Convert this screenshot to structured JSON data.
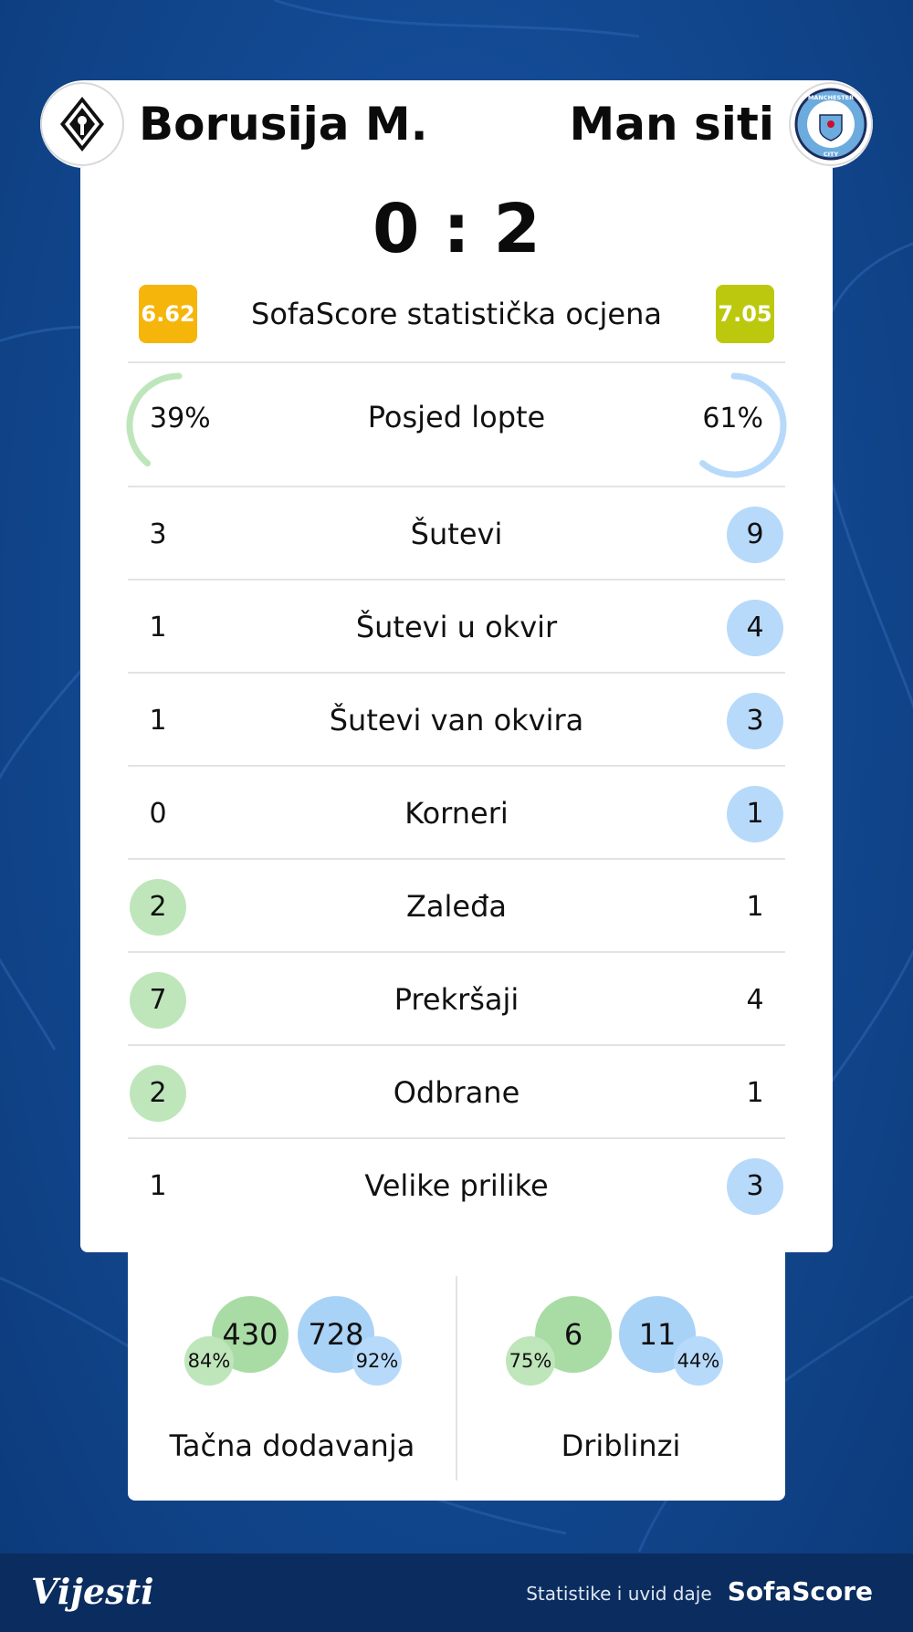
{
  "header": {
    "home_team": "Borusija M.",
    "away_team": "Man siti",
    "home_logo_icon": "borussia-monchengladbach-crest-icon",
    "away_logo_icon": "manchester-city-crest-icon",
    "away_logo_text": [
      "MANCHESTER",
      "CITY"
    ]
  },
  "score": "0 : 2",
  "rating": {
    "home": "6.62",
    "label": "SofaScore statistička ocjena",
    "away": "7.05",
    "home_color": "#f5b50a",
    "away_color": "#bcc80e"
  },
  "possession": {
    "label": "Posjed lopte",
    "home": "39%",
    "away": "61%",
    "home_fraction": 0.39,
    "away_fraction": 0.61
  },
  "stats": [
    {
      "label": "Šutevi",
      "home": "3",
      "away": "9",
      "winner": "away"
    },
    {
      "label": "Šutevi u okvir",
      "home": "1",
      "away": "4",
      "winner": "away"
    },
    {
      "label": "Šutevi van okvira",
      "home": "1",
      "away": "3",
      "winner": "away"
    },
    {
      "label": "Korneri",
      "home": "0",
      "away": "1",
      "winner": "away"
    },
    {
      "label": "Zaleđa",
      "home": "2",
      "away": "1",
      "winner": "home"
    },
    {
      "label": "Prekršaji",
      "home": "7",
      "away": "4",
      "winner": "home"
    },
    {
      "label": "Odbrane",
      "home": "2",
      "away": "1",
      "winner": "home"
    },
    {
      "label": "Velike prilike",
      "home": "1",
      "away": "3",
      "winner": "away"
    }
  ],
  "passes": {
    "label": "Tačna dodavanja",
    "home": "430",
    "home_pct": "84%",
    "away": "728",
    "away_pct": "92%"
  },
  "dribbles": {
    "label": "Driblinzi",
    "home": "6",
    "home_pct": "75%",
    "away": "11",
    "away_pct": "44%"
  },
  "colors": {
    "home_accent": "#bfe6bb",
    "away_accent": "#b7dafb",
    "background": "#134a93",
    "footer": "#0b2c5e"
  },
  "footer": {
    "brand": "Vijesti",
    "credit_text": "Statistike i uvid daje",
    "credit_brand": "SofaScore"
  }
}
